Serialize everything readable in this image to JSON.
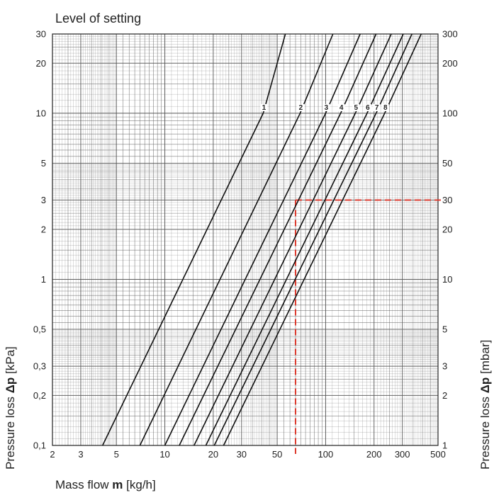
{
  "chart_data": {
    "type": "line",
    "title": "Level of setting",
    "xlabel": {
      "prefix": "Mass flow ",
      "bold": "m",
      "suffix": " [kg/h]"
    },
    "ylabel_left": {
      "prefix": "Pressure loss ",
      "bold": "Δp",
      "suffix": " [kPa]"
    },
    "ylabel_right": {
      "prefix": "Pressure loss ",
      "bold": "Δp",
      "suffix": " [mbar]"
    },
    "x_scale": "log",
    "y_scale": "log",
    "xlim": [
      2,
      500
    ],
    "ylim": [
      0.1,
      30
    ],
    "grid": true,
    "x_ticks": [
      {
        "v": 2,
        "t": "2"
      },
      {
        "v": 3,
        "t": "3"
      },
      {
        "v": 5,
        "t": "5"
      },
      {
        "v": 10,
        "t": "10"
      },
      {
        "v": 20,
        "t": "20"
      },
      {
        "v": 30,
        "t": "30"
      },
      {
        "v": 50,
        "t": "50"
      },
      {
        "v": 100,
        "t": "100"
      },
      {
        "v": 200,
        "t": "200"
      },
      {
        "v": 300,
        "t": "300"
      },
      {
        "v": 500,
        "t": "500"
      }
    ],
    "y_ticks_left": [
      {
        "v": 0.1,
        "t": "0,1"
      },
      {
        "v": 0.2,
        "t": "0,2"
      },
      {
        "v": 0.3,
        "t": "0,3"
      },
      {
        "v": 0.5,
        "t": "0,5"
      },
      {
        "v": 1,
        "t": "1"
      },
      {
        "v": 2,
        "t": "2"
      },
      {
        "v": 3,
        "t": "3"
      },
      {
        "v": 5,
        "t": "5"
      },
      {
        "v": 10,
        "t": "10"
      },
      {
        "v": 20,
        "t": "20"
      },
      {
        "v": 30,
        "t": "30"
      }
    ],
    "y_ticks_right": [
      {
        "v": 0.1,
        "t": "1"
      },
      {
        "v": 0.2,
        "t": "2"
      },
      {
        "v": 0.3,
        "t": "3"
      },
      {
        "v": 0.5,
        "t": "5"
      },
      {
        "v": 1,
        "t": "10"
      },
      {
        "v": 2,
        "t": "20"
      },
      {
        "v": 3,
        "t": "30"
      },
      {
        "v": 5,
        "t": "50"
      },
      {
        "v": 10,
        "t": "100"
      },
      {
        "v": 20,
        "t": "200"
      },
      {
        "v": 30,
        "t": "300"
      }
    ],
    "series": [
      {
        "name": "1",
        "x": [
          4.1,
          40.9,
          56.2
        ],
        "y": [
          0.1,
          10,
          30
        ]
      },
      {
        "name": "2",
        "x": [
          7.0,
          69.4,
          111
        ],
        "y": [
          0.1,
          10,
          30
        ]
      },
      {
        "name": "3",
        "x": [
          10.0,
          100,
          164
        ],
        "y": [
          0.1,
          10,
          30
        ]
      },
      {
        "name": "4",
        "x": [
          12.3,
          124,
          206
        ],
        "y": [
          0.1,
          10,
          30
        ]
      },
      {
        "name": "5",
        "x": [
          15.2,
          153,
          256
        ],
        "y": [
          0.1,
          10,
          30
        ]
      },
      {
        "name": "6",
        "x": [
          18.0,
          181,
          304
        ],
        "y": [
          0.1,
          10,
          30
        ]
      },
      {
        "name": "7",
        "x": [
          20.3,
          206,
          344
        ],
        "y": [
          0.1,
          10,
          30
        ]
      },
      {
        "name": "8",
        "x": [
          23.2,
          233,
          393
        ],
        "y": [
          0.1,
          10,
          30
        ]
      }
    ],
    "curve_label_y": 10,
    "reference": {
      "x": 65,
      "y": 3,
      "color": "#dd3b2f"
    },
    "colors": {
      "line": "#111111",
      "grid": "#555555",
      "axis": "#222222"
    }
  }
}
